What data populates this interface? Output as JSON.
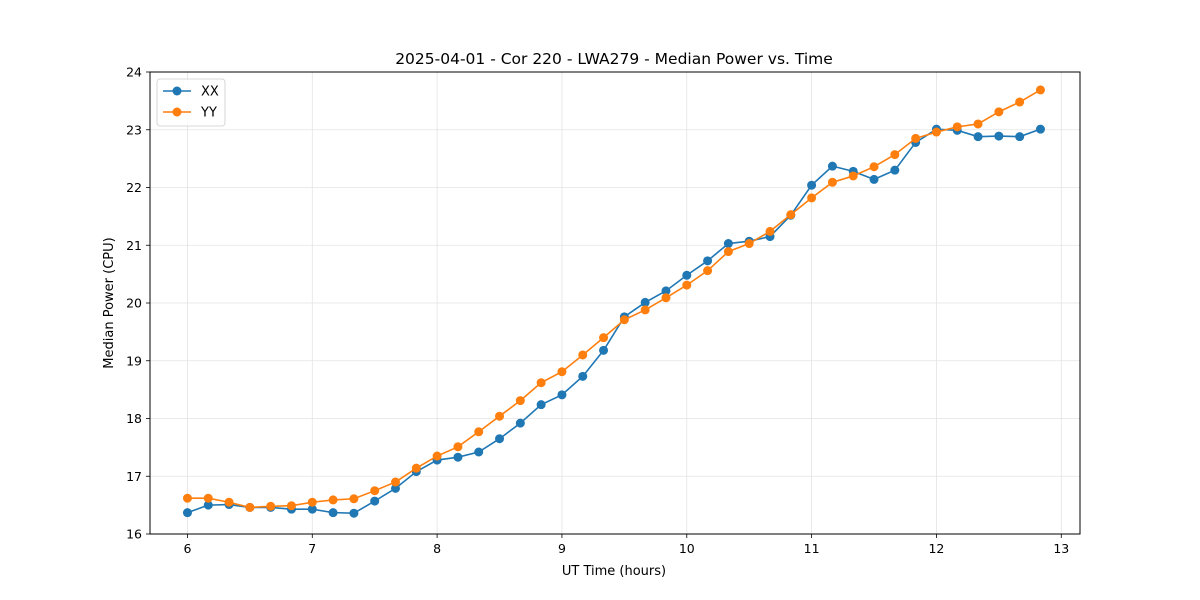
{
  "chart_data": {
    "type": "line",
    "title": "2025-04-01 - Cor 220 - LWA279 - Median Power vs. Time",
    "xlabel": "UT Time (hours)",
    "ylabel": "Median Power (CPU)",
    "xlim": [
      5.7,
      13.15
    ],
    "ylim": [
      16,
      24
    ],
    "xticks": [
      6,
      7,
      8,
      9,
      10,
      11,
      12,
      13
    ],
    "yticks": [
      16,
      17,
      18,
      19,
      20,
      21,
      22,
      23,
      24
    ],
    "grid": true,
    "legend_position": "top-left",
    "x": [
      6.0,
      6.1667,
      6.3333,
      6.5,
      6.6667,
      6.8333,
      7.0,
      7.1667,
      7.3333,
      7.5,
      7.6667,
      7.8333,
      8.0,
      8.1667,
      8.3333,
      8.5,
      8.6667,
      8.8333,
      9.0,
      9.1667,
      9.3333,
      9.5,
      9.6667,
      9.8333,
      10.0,
      10.1667,
      10.3333,
      10.5,
      10.6667,
      10.8333,
      11.0,
      11.1667,
      11.3333,
      11.5,
      11.6667,
      11.8333,
      12.0,
      12.1667,
      12.3333,
      12.5,
      12.6667,
      12.8333
    ],
    "series": [
      {
        "name": "XX",
        "color": "#1f77b4",
        "values": [
          16.37,
          16.5,
          16.51,
          16.46,
          16.46,
          16.43,
          16.43,
          16.37,
          16.36,
          16.57,
          16.79,
          17.08,
          17.28,
          17.33,
          17.42,
          17.65,
          17.92,
          18.24,
          18.41,
          18.73,
          19.18,
          19.76,
          20.01,
          20.21,
          20.48,
          20.73,
          21.03,
          21.07,
          21.15,
          21.52,
          22.04,
          22.37,
          22.28,
          22.14,
          22.3,
          22.78,
          23.01,
          22.99,
          22.88,
          22.89,
          22.88,
          23.01
        ]
      },
      {
        "name": "YY",
        "color": "#ff7f0e",
        "values": [
          16.62,
          16.62,
          16.55,
          16.46,
          16.48,
          16.49,
          16.55,
          16.59,
          16.61,
          16.75,
          16.9,
          17.14,
          17.35,
          17.51,
          17.77,
          18.04,
          18.31,
          18.62,
          18.81,
          19.1,
          19.4,
          19.71,
          19.88,
          20.09,
          20.31,
          20.56,
          20.89,
          21.03,
          21.24,
          21.53,
          21.82,
          22.09,
          22.2,
          22.36,
          22.57,
          22.85,
          22.96,
          23.05,
          23.1,
          23.31,
          23.48,
          23.69
        ]
      }
    ]
  }
}
